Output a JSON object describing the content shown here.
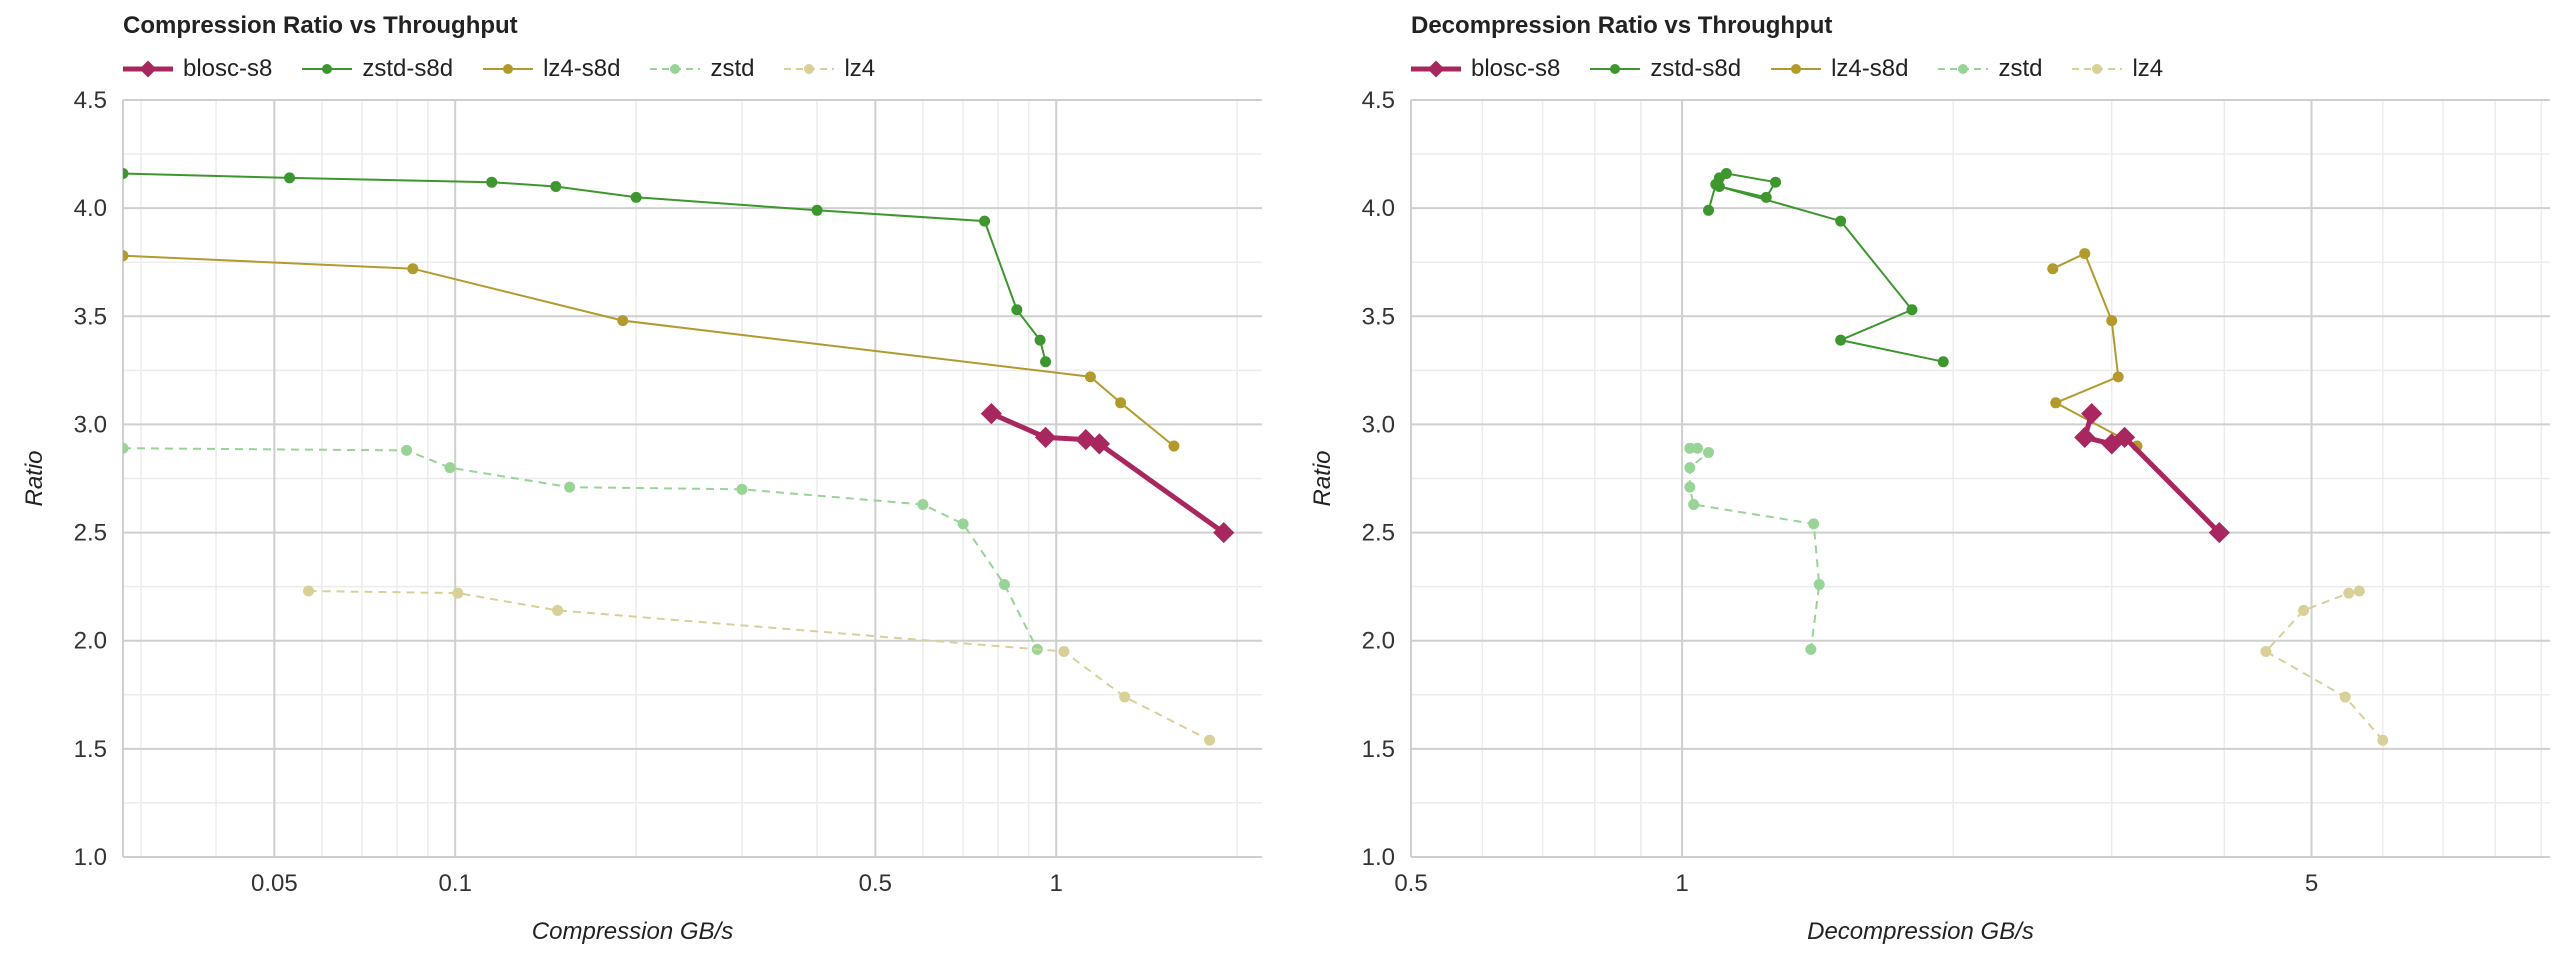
{
  "colors": {
    "blosc_s8": "#a8275f",
    "zstd_s8d": "#3d962e",
    "lz4_s8d": "#b39a2c",
    "zstd": "#99d497",
    "lz4": "#d9d097"
  },
  "legend": [
    {
      "name": "blosc-s8",
      "color": "#a8275f",
      "dash": false,
      "marker": "diamond",
      "width": 5
    },
    {
      "name": "zstd-s8d",
      "color": "#3d962e",
      "dash": false,
      "marker": "circle",
      "width": 2
    },
    {
      "name": "lz4-s8d",
      "color": "#b39a2c",
      "dash": false,
      "marker": "circle",
      "width": 2
    },
    {
      "name": "zstd",
      "color": "#99d497",
      "dash": true,
      "marker": "circle",
      "width": 2
    },
    {
      "name": "lz4",
      "color": "#d9d097",
      "dash": true,
      "marker": "circle",
      "width": 2
    }
  ],
  "chart_data": [
    {
      "type": "line",
      "title": "Compression Ratio vs Throughput",
      "xlabel": "Compression GB/s",
      "ylabel": "Ratio",
      "xscale": "log",
      "xlim": [
        0.028,
        2.2
      ],
      "ylim": [
        1.0,
        4.5
      ],
      "xticks": [
        {
          "v": 0.05,
          "label": "0.05"
        },
        {
          "v": 0.1,
          "label": "0.1"
        },
        {
          "v": 0.5,
          "label": "0.5"
        },
        {
          "v": 1,
          "label": "1"
        }
      ],
      "yticks": [
        {
          "v": 1.0,
          "label": "1.0"
        },
        {
          "v": 1.5,
          "label": "1.5"
        },
        {
          "v": 2.0,
          "label": "2.0"
        },
        {
          "v": 2.5,
          "label": "2.5"
        },
        {
          "v": 3.0,
          "label": "3.0"
        },
        {
          "v": 3.5,
          "label": "3.5"
        },
        {
          "v": 4.0,
          "label": "4.0"
        },
        {
          "v": 4.5,
          "label": "4.5"
        }
      ],
      "grid": true,
      "legend_position": "top-left",
      "series": [
        {
          "name": "zstd-s8d",
          "points": [
            [
              0.028,
              4.16
            ],
            [
              0.053,
              4.14
            ],
            [
              0.115,
              4.12
            ],
            [
              0.147,
              4.1
            ],
            [
              0.2,
              4.05
            ],
            [
              0.4,
              3.99
            ],
            [
              0.76,
              3.94
            ],
            [
              0.86,
              3.53
            ],
            [
              0.94,
              3.39
            ],
            [
              0.96,
              3.29
            ]
          ]
        },
        {
          "name": "lz4-s8d",
          "points": [
            [
              0.028,
              3.78
            ],
            [
              0.085,
              3.72
            ],
            [
              0.19,
              3.48
            ],
            [
              1.14,
              3.22
            ],
            [
              1.28,
              3.1
            ],
            [
              1.57,
              2.9
            ]
          ]
        },
        {
          "name": "zstd",
          "points": [
            [
              0.028,
              2.89
            ],
            [
              0.083,
              2.88
            ],
            [
              0.098,
              2.8
            ],
            [
              0.155,
              2.71
            ],
            [
              0.3,
              2.7
            ],
            [
              0.6,
              2.63
            ],
            [
              0.7,
              2.54
            ],
            [
              0.82,
              2.26
            ],
            [
              0.93,
              1.96
            ]
          ]
        },
        {
          "name": "lz4",
          "points": [
            [
              0.057,
              2.23
            ],
            [
              0.101,
              2.22
            ],
            [
              0.148,
              2.14
            ],
            [
              1.03,
              1.95
            ],
            [
              1.3,
              1.74
            ],
            [
              1.8,
              1.54
            ]
          ]
        },
        {
          "name": "blosc-s8",
          "points": [
            [
              0.78,
              3.05
            ],
            [
              0.96,
              2.94
            ],
            [
              1.12,
              2.93
            ],
            [
              1.18,
              2.91
            ],
            [
              1.9,
              2.5
            ]
          ]
        }
      ]
    },
    {
      "type": "line",
      "title": "Decompression Ratio vs Throughput",
      "xlabel": "Decompression GB/s",
      "ylabel": "Ratio",
      "xscale": "log",
      "xlim": [
        0.5,
        9.2
      ],
      "ylim": [
        1.0,
        4.5
      ],
      "xticks": [
        {
          "v": 0.5,
          "label": "0.5"
        },
        {
          "v": 1,
          "label": "1"
        },
        {
          "v": 5,
          "label": "5"
        }
      ],
      "yticks": [
        {
          "v": 1.0,
          "label": "1.0"
        },
        {
          "v": 1.5,
          "label": "1.5"
        },
        {
          "v": 2.0,
          "label": "2.0"
        },
        {
          "v": 2.5,
          "label": "2.5"
        },
        {
          "v": 3.0,
          "label": "3.0"
        },
        {
          "v": 3.5,
          "label": "3.5"
        },
        {
          "v": 4.0,
          "label": "4.0"
        },
        {
          "v": 4.5,
          "label": "4.5"
        }
      ],
      "grid": true,
      "legend_position": "top-left",
      "series": [
        {
          "name": "zstd-s8d",
          "points": [
            [
              1.07,
              3.99
            ],
            [
              1.09,
              4.11
            ],
            [
              1.1,
              4.14
            ],
            [
              1.12,
              4.16
            ],
            [
              1.27,
              4.12
            ],
            [
              1.24,
              4.05
            ],
            [
              1.1,
              4.1
            ],
            [
              1.5,
              3.94
            ],
            [
              1.8,
              3.53
            ],
            [
              1.5,
              3.39
            ],
            [
              1.95,
              3.29
            ]
          ]
        },
        {
          "name": "lz4-s8d",
          "points": [
            [
              2.58,
              3.72
            ],
            [
              2.8,
              3.79
            ],
            [
              3.0,
              3.48
            ],
            [
              3.05,
              3.22
            ],
            [
              2.6,
              3.1
            ],
            [
              3.2,
              2.9
            ]
          ]
        },
        {
          "name": "zstd",
          "points": [
            [
              1.02,
              2.89
            ],
            [
              1.04,
              2.89
            ],
            [
              1.07,
              2.87
            ],
            [
              1.02,
              2.8
            ],
            [
              1.02,
              2.71
            ],
            [
              1.03,
              2.63
            ],
            [
              1.4,
              2.54
            ],
            [
              1.42,
              2.26
            ],
            [
              1.39,
              1.96
            ]
          ]
        },
        {
          "name": "lz4",
          "points": [
            [
              6.0,
              1.54
            ],
            [
              5.45,
              1.74
            ],
            [
              4.45,
              1.95
            ],
            [
              4.9,
              2.14
            ],
            [
              5.5,
              2.22
            ],
            [
              5.65,
              2.23
            ]
          ]
        },
        {
          "name": "blosc-s8",
          "points": [
            [
              2.85,
              3.05
            ],
            [
              2.8,
              2.94
            ],
            [
              3.0,
              2.91
            ],
            [
              3.1,
              2.94
            ],
            [
              3.95,
              2.5
            ]
          ]
        }
      ]
    }
  ]
}
